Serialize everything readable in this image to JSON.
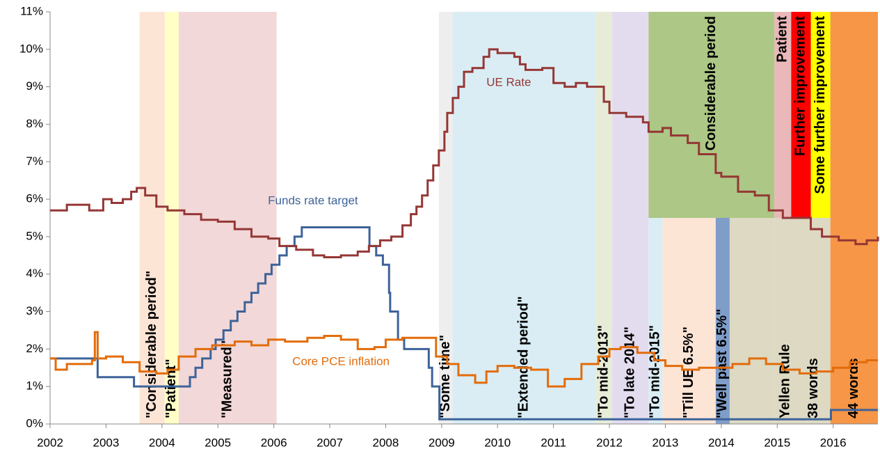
{
  "chart_data": {
    "type": "line",
    "step": true,
    "xlim": [
      2002,
      2016.8
    ],
    "xticks": [
      2002,
      2003,
      2004,
      2005,
      2006,
      2007,
      2008,
      2009,
      2010,
      2011,
      2012,
      2013,
      2014,
      2015,
      2016
    ],
    "ylim": [
      0,
      11
    ],
    "yticks": [
      {
        "value": 0,
        "label": "0%"
      },
      {
        "value": 1,
        "label": "1%"
      },
      {
        "value": 2,
        "label": "2%"
      },
      {
        "value": 3,
        "label": "3%"
      },
      {
        "value": 4,
        "label": "4%"
      },
      {
        "value": 5,
        "label": "5%"
      },
      {
        "value": 6,
        "label": "6%"
      },
      {
        "value": 7,
        "label": "7%"
      },
      {
        "value": 8,
        "label": "8%"
      },
      {
        "value": 9,
        "label": "9%"
      },
      {
        "value": 10,
        "label": "10%"
      },
      {
        "value": 11,
        "label": "11%"
      }
    ],
    "bands": [
      {
        "x0": 2003.6,
        "x1": 2004.05,
        "y0": 0,
        "y1": 11,
        "color": "#fde5d6",
        "label": "\"Considerable period\"",
        "anchor": "bottom"
      },
      {
        "x0": 2004.05,
        "x1": 2004.3,
        "y0": 0,
        "y1": 11,
        "color": "#ffffc6",
        "label": "\"Patient\"",
        "anchor": "bottom"
      },
      {
        "x0": 2004.3,
        "x1": 2006.05,
        "y0": 0,
        "y1": 11,
        "color": "#f2d8d8",
        "label": "\"Measured\"",
        "anchor": "bottom"
      },
      {
        "x0": 2008.95,
        "x1": 2009.2,
        "y0": 0,
        "y1": 11,
        "color": "#eeeeee",
        "label": "\"Some time\"",
        "anchor": "bottom"
      },
      {
        "x0": 2009.2,
        "x1": 2011.75,
        "y0": 0,
        "y1": 11,
        "color": "#daedf4",
        "label": "\"Extended period\"",
        "anchor": "bottom"
      },
      {
        "x0": 2011.75,
        "x1": 2012.05,
        "y0": 0,
        "y1": 11,
        "color": "#e7ecd9",
        "label": "\"To mid-2013\"",
        "anchor": "bottom"
      },
      {
        "x0": 2012.05,
        "x1": 2012.7,
        "y0": 0,
        "y1": 11,
        "color": "#e3dcee",
        "label": "\"To late 2014\"",
        "anchor": "bottom"
      },
      {
        "x0": 2012.7,
        "x1": 2012.95,
        "y0": 0,
        "y1": 5.5,
        "color": "#daedf4",
        "label": "\"To mid-2015\"",
        "anchor": "bottom"
      },
      {
        "x0": 2012.95,
        "x1": 2013.9,
        "y0": 0,
        "y1": 5.5,
        "color": "#fde5d6",
        "label": "\"Till UE 6.5%\"",
        "anchor": "bottom"
      },
      {
        "x0": 2013.9,
        "x1": 2014.15,
        "y0": 0,
        "y1": 5.5,
        "color": "#7f9dc9",
        "label": "\"Well past 6.5%\"",
        "anchor": "bottom"
      },
      {
        "x0": 2014.15,
        "x1": 2014.95,
        "y0": 0,
        "y1": 5.5,
        "color": "#ddd9c3"
      },
      {
        "x0": 2014.95,
        "x1": 2015.35,
        "y0": 0,
        "y1": 5.5,
        "color": "#ddd9c3",
        "label": "Yellen Rule",
        "anchor": "bottom"
      },
      {
        "x0": 2015.35,
        "x1": 2015.95,
        "y0": 0,
        "y1": 5.5,
        "color": "#ddd9c3",
        "label": "38 words",
        "anchor": "bottom"
      },
      {
        "x0": 2012.7,
        "x1": 2014.95,
        "y0": 5.5,
        "y1": 11,
        "color": "#acc786",
        "label": "Considerable period",
        "anchor": "top"
      },
      {
        "x0": 2014.95,
        "x1": 2015.25,
        "y0": 5.5,
        "y1": 11,
        "color": "#eab8b8",
        "label": "Patient",
        "anchor": "top"
      },
      {
        "x0": 2015.25,
        "x1": 2015.6,
        "y0": 5.5,
        "y1": 11,
        "color": "#ff0000",
        "label": "Further improvement",
        "anchor": "top"
      },
      {
        "x0": 2015.6,
        "x1": 2015.95,
        "y0": 5.5,
        "y1": 11,
        "color": "#ffff00",
        "label": "Some further improvement",
        "anchor": "top"
      },
      {
        "x0": 2015.95,
        "x1": 2016.8,
        "y0": 0,
        "y1": 11,
        "color": "#f79646",
        "label": "44 words",
        "anchor": "bottom"
      }
    ],
    "series": [
      {
        "name": "Funds rate target",
        "color": "#3d6399",
        "x": [
          2002,
          2002.85,
          2003.5,
          2004.5,
          2004.6,
          2004.72,
          2004.87,
          2004.96,
          2005.1,
          2005.23,
          2005.35,
          2005.48,
          2005.6,
          2005.72,
          2005.85,
          2005.96,
          2006.1,
          2006.23,
          2006.37,
          2006.5,
          2007.71,
          2007.83,
          2007.95,
          2008.06,
          2008.08,
          2008.22,
          2008.33,
          2008.77,
          2008.83,
          2008.96,
          2015.96,
          2016.8
        ],
        "values": [
          1.75,
          1.25,
          1,
          1.25,
          1.5,
          1.75,
          2,
          2.25,
          2.5,
          2.75,
          3,
          3.25,
          3.5,
          3.75,
          4,
          4.25,
          4.5,
          4.75,
          5,
          5.25,
          4.75,
          4.5,
          4.25,
          3.5,
          3,
          2.25,
          2,
          1.5,
          1,
          0.125,
          0.375,
          0.375
        ]
      },
      {
        "name": "UE Rate",
        "color": "#953735",
        "x": [
          2002,
          2002.3,
          2002.7,
          2002.95,
          2003.1,
          2003.3,
          2003.45,
          2003.55,
          2003.7,
          2003.9,
          2004.1,
          2004.4,
          2004.7,
          2005,
          2005.3,
          2005.6,
          2005.9,
          2006.1,
          2006.4,
          2006.7,
          2006.9,
          2007.2,
          2007.5,
          2007.7,
          2007.9,
          2008.1,
          2008.3,
          2008.45,
          2008.55,
          2008.65,
          2008.75,
          2008.85,
          2008.95,
          2009.05,
          2009.1,
          2009.2,
          2009.3,
          2009.4,
          2009.55,
          2009.75,
          2009.85,
          2010,
          2010.3,
          2010.4,
          2010.5,
          2010.8,
          2011,
          2011.2,
          2011.4,
          2011.6,
          2011.9,
          2012,
          2012.3,
          2012.6,
          2012.7,
          2012.95,
          2013.1,
          2013.4,
          2013.6,
          2013.9,
          2014,
          2014.3,
          2014.6,
          2014.85,
          2015.1,
          2015.4,
          2015.6,
          2015.8,
          2016.1,
          2016.4,
          2016.6,
          2016.8
        ],
        "values": [
          5.7,
          5.85,
          5.7,
          6,
          5.9,
          6,
          6.2,
          6.3,
          6.1,
          5.8,
          5.7,
          5.6,
          5.45,
          5.4,
          5.2,
          5,
          4.95,
          4.75,
          4.65,
          4.5,
          4.45,
          4.5,
          4.6,
          4.75,
          4.9,
          5,
          5.3,
          5.6,
          5.8,
          6.1,
          6.5,
          6.9,
          7.3,
          7.8,
          8.3,
          8.7,
          9,
          9.4,
          9.5,
          9.8,
          10,
          9.9,
          9.8,
          9.6,
          9.45,
          9.5,
          9.1,
          9,
          9.1,
          9,
          8.6,
          8.3,
          8.2,
          8.05,
          7.8,
          7.9,
          7.7,
          7.5,
          7.2,
          6.7,
          6.6,
          6.2,
          6.1,
          5.7,
          5.5,
          5.5,
          5.2,
          5,
          4.9,
          4.8,
          4.9,
          5
        ]
      },
      {
        "name": "Core PCE inflation",
        "color": "#e36c0a",
        "x": [
          2002,
          2002.1,
          2002.3,
          2002.5,
          2002.75,
          2002.8,
          2002.85,
          2003,
          2003.3,
          2003.6,
          2003.9,
          2004.1,
          2004.3,
          2004.6,
          2004.9,
          2005.3,
          2005.6,
          2005.9,
          2006.2,
          2006.6,
          2006.9,
          2007.2,
          2007.5,
          2007.8,
          2008,
          2008.3,
          2008.6,
          2008.9,
          2009.1,
          2009.3,
          2009.6,
          2009.8,
          2010,
          2010.3,
          2010.6,
          2010.9,
          2011.2,
          2011.5,
          2011.8,
          2012,
          2012.2,
          2012.5,
          2012.8,
          2013,
          2013.3,
          2013.6,
          2013.9,
          2014.2,
          2014.5,
          2014.8,
          2015.1,
          2015.4,
          2015.7,
          2016,
          2016.3,
          2016.6,
          2016.8
        ],
        "values": [
          1.75,
          1.45,
          1.6,
          1.6,
          1.7,
          2.45,
          1.75,
          1.8,
          1.65,
          1.4,
          1.35,
          1.45,
          1.8,
          2,
          2.1,
          2.2,
          2.1,
          2.25,
          2.2,
          2.3,
          2.35,
          2.25,
          2,
          2.05,
          2.25,
          2.3,
          2.3,
          1.8,
          1.6,
          1.3,
          1.1,
          1.4,
          1.55,
          1.5,
          1.45,
          1,
          1.2,
          1.6,
          1.8,
          2,
          2.05,
          1.9,
          1.7,
          1.55,
          1.45,
          1.5,
          1.5,
          1.6,
          1.75,
          1.6,
          1.45,
          1.35,
          1.4,
          1.5,
          1.65,
          1.7,
          1.7
        ]
      }
    ]
  }
}
